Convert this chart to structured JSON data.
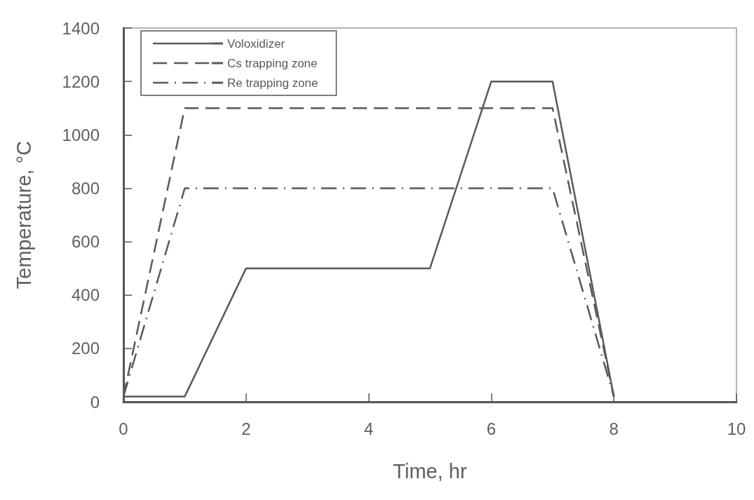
{
  "chart_data": {
    "type": "line",
    "xlabel": "Time, hr",
    "ylabel": "Temperature, °C",
    "xlim": [
      0,
      10
    ],
    "xticks": [
      0,
      2,
      4,
      6,
      8,
      10
    ],
    "ylim": [
      0,
      1400
    ],
    "yticks": [
      0,
      200,
      400,
      600,
      800,
      1000,
      1200,
      1400
    ],
    "grid": false,
    "legend": "top left",
    "marker": "none",
    "series": [
      {
        "name": "Voloxidizer",
        "color": "#595959",
        "line_style": "solid",
        "x": [
          0,
          1,
          2,
          5,
          6,
          7,
          8
        ],
        "values": [
          20,
          20,
          500,
          500,
          1200,
          1200,
          20
        ]
      },
      {
        "name": "Cs trapping zone",
        "color": "#595959",
        "line_style": "dashed",
        "x": [
          0,
          1,
          7,
          8
        ],
        "values": [
          20,
          1100,
          1100,
          20
        ]
      },
      {
        "name": "Re trapping zone",
        "color": "#595959",
        "line_style": "dashdot",
        "x": [
          0,
          1,
          7,
          8
        ],
        "values": [
          20,
          800,
          800,
          20
        ]
      }
    ]
  }
}
